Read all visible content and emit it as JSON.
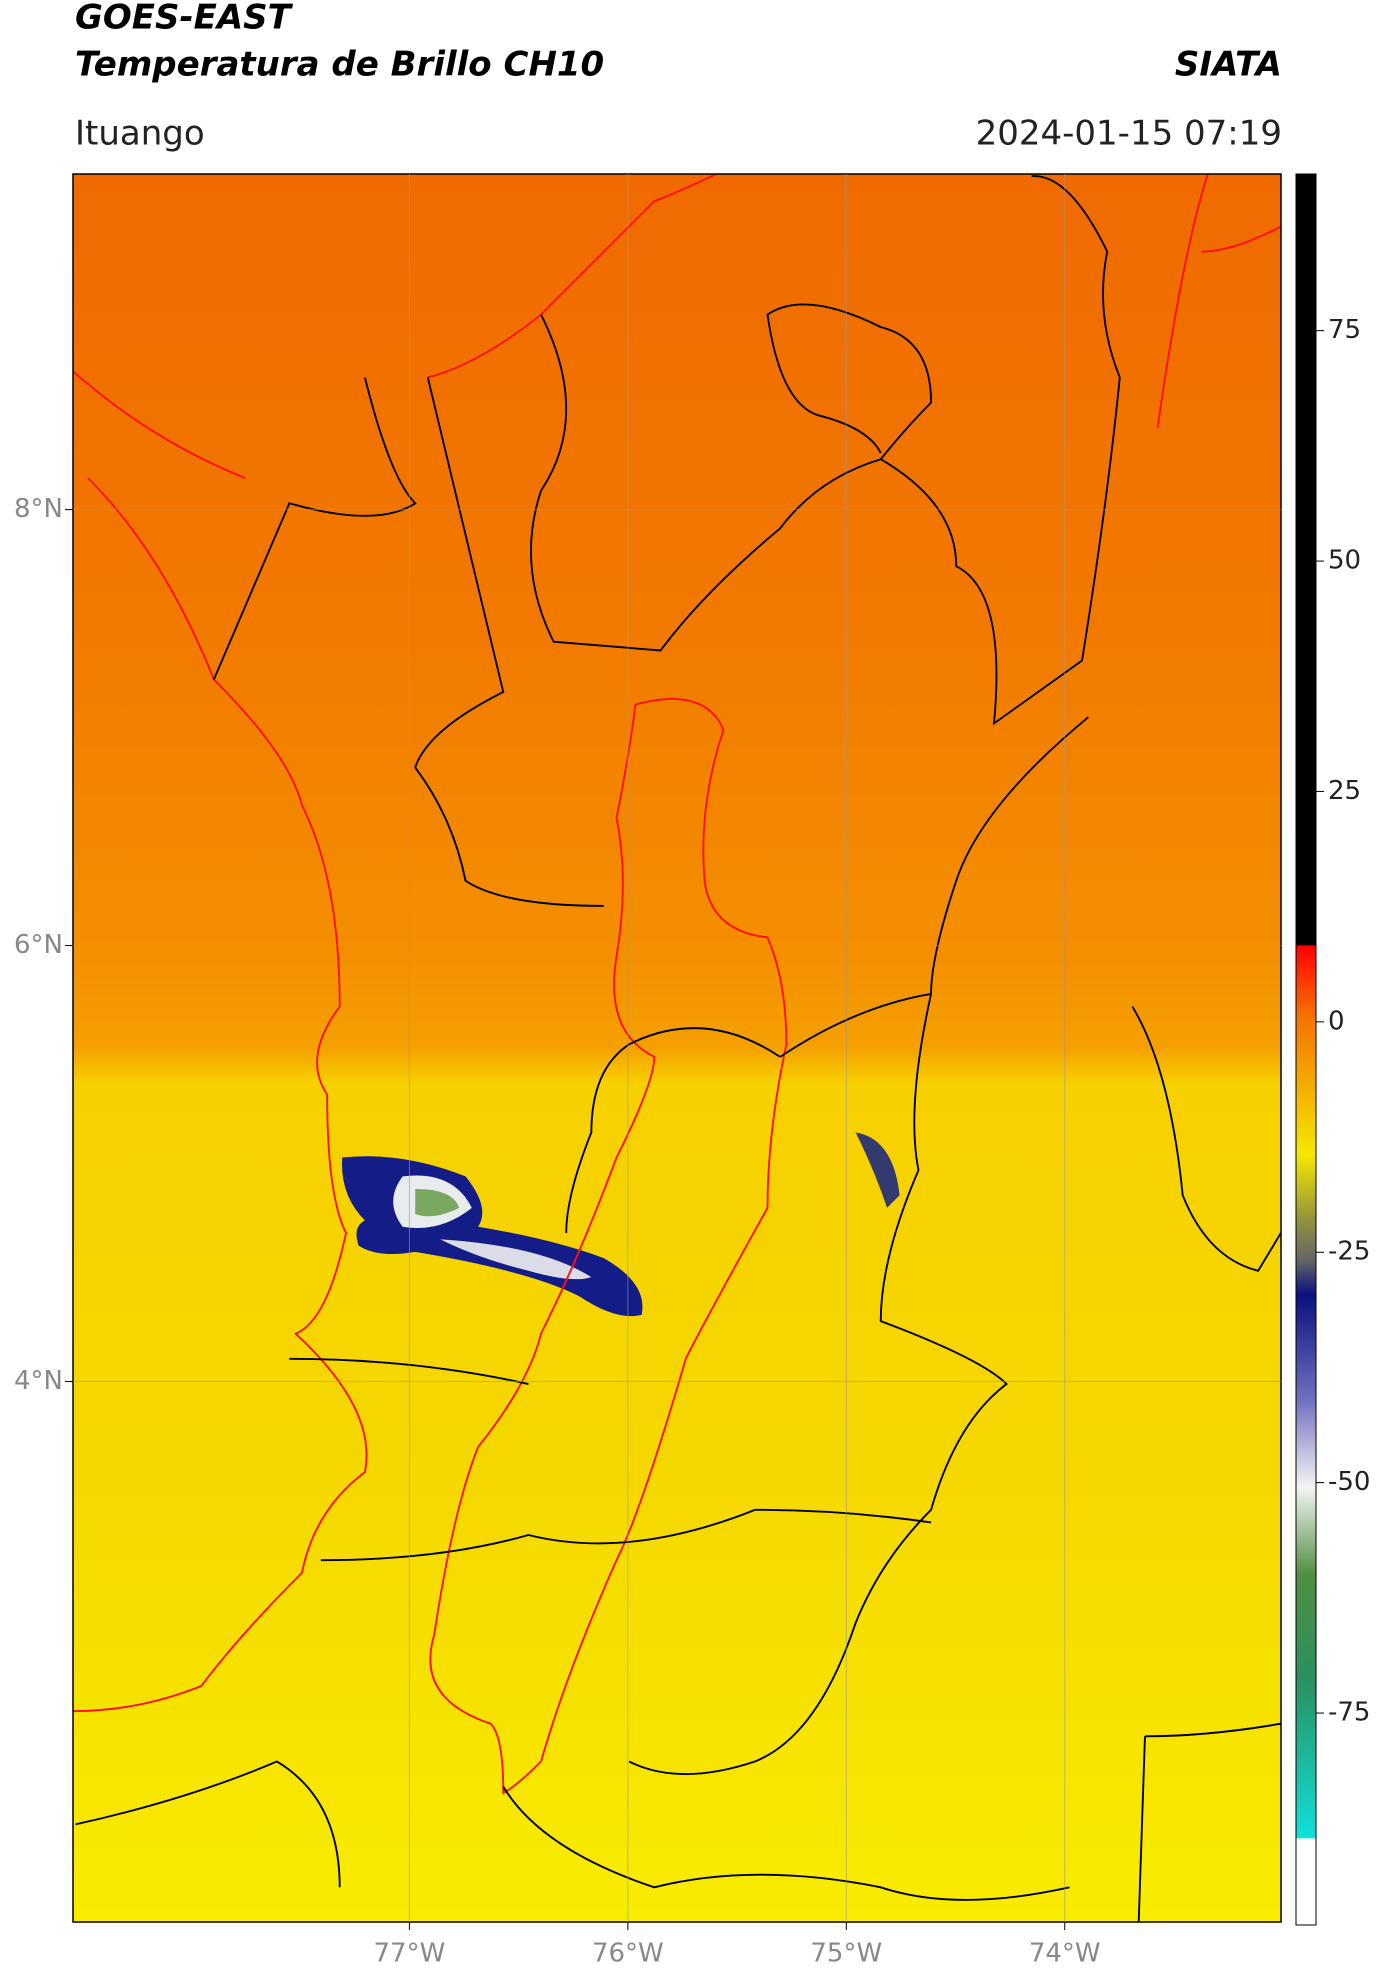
{
  "chart_data": {
    "type": "map",
    "title": "GOES-EAST",
    "subtitle": "Temperatura de Brillo CH10",
    "source": "SIATA",
    "location": "Ituango",
    "timestamp": "2024-01-15 07:19",
    "xlim": [
      -78.54,
      -73.01
    ],
    "ylim": [
      1.52,
      9.54
    ],
    "xticks": [
      {
        "value": -77,
        "label": "77°W"
      },
      {
        "value": -76,
        "label": "76°W"
      },
      {
        "value": -75,
        "label": "75°W"
      },
      {
        "value": -74,
        "label": "74°W"
      }
    ],
    "yticks": [
      {
        "value": 8,
        "label": "8°N"
      },
      {
        "value": 6,
        "label": "6°N"
      },
      {
        "value": 4,
        "label": "4°N"
      }
    ],
    "grid": true,
    "colorbar": {
      "lim": [
        -98,
        92
      ],
      "ticks": [
        75,
        50,
        25,
        0,
        -25,
        -50,
        -75
      ]
    }
  }
}
